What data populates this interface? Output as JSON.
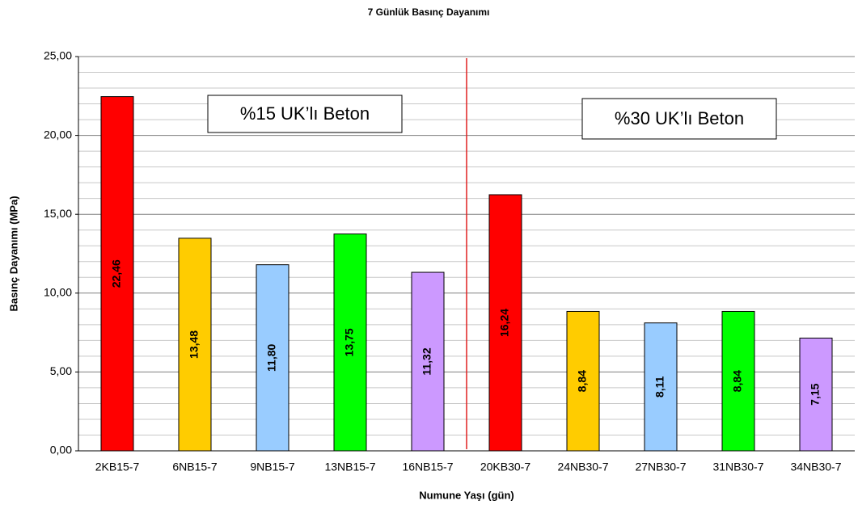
{
  "chart_data": {
    "type": "bar",
    "title": "7 Günlük Basınç Dayanımı",
    "x_label": "Numune Yaşı (gün)",
    "y_label": "Basınç Dayanımı (MPa)",
    "categories": [
      "2KB15-7",
      "6NB15-7",
      "9NB15-7",
      "13NB15-7",
      "16NB15-7",
      "20KB30-7",
      "24NB30-7",
      "27NB30-7",
      "31NB30-7",
      "34NB30-7"
    ],
    "values": [
      22.46,
      13.48,
      11.8,
      13.75,
      11.32,
      16.24,
      8.84,
      8.11,
      8.84,
      7.15
    ],
    "value_labels": [
      "22,46",
      "13,48",
      "11,80",
      "13,75",
      "11,32",
      "16,24",
      "8,84",
      "8,11",
      "8,84",
      "7,15"
    ],
    "colors": [
      "#ff0000",
      "#ffcc00",
      "#99ccff",
      "#00ff00",
      "#cc99ff",
      "#ff0000",
      "#ffcc00",
      "#99ccff",
      "#00ff00",
      "#cc99ff"
    ],
    "ylim": [
      0,
      25
    ],
    "yticks": [
      {
        "value": 0,
        "label": "0,00"
      },
      {
        "value": 5,
        "label": "5,00"
      },
      {
        "value": 10,
        "label": "10,00"
      },
      {
        "value": 15,
        "label": "15,00"
      },
      {
        "value": 20,
        "label": "20,00"
      },
      {
        "value": 25,
        "label": "25,00"
      }
    ],
    "minor_grid": [
      1,
      2,
      3,
      4,
      6,
      7,
      8,
      9,
      11,
      12,
      13,
      14,
      16,
      17,
      18,
      19,
      21,
      22,
      23,
      24
    ],
    "grid": true,
    "annotations": [
      "%15 UK’lı Beton",
      "%30 UK’lı Beton"
    ]
  }
}
